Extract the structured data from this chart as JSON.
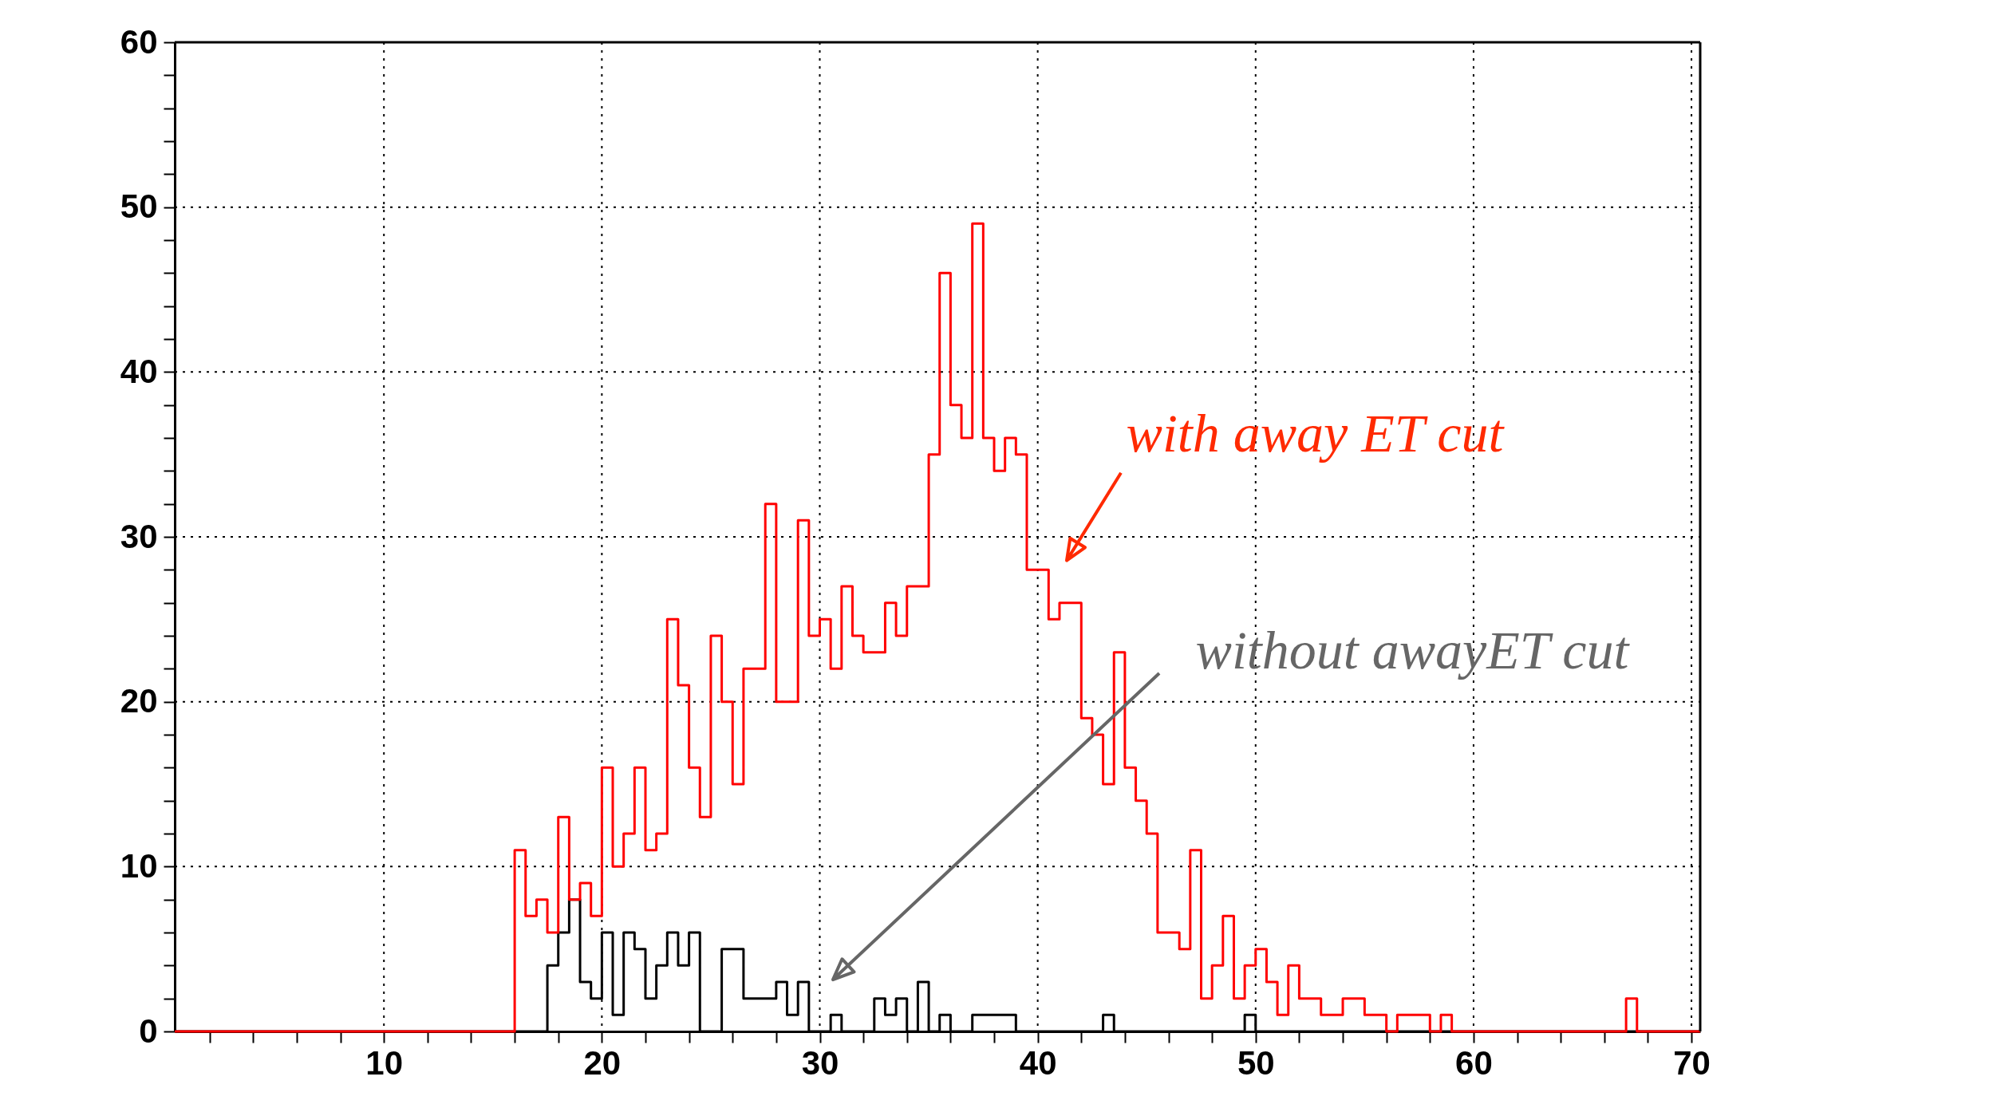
{
  "chart_data": {
    "type": "histogram",
    "bins": [
      0.4,
      16,
      16.5,
      17,
      17.5,
      18,
      18.5,
      19,
      19.5,
      20,
      20.5,
      21,
      21.5,
      22,
      22.5,
      23,
      23.5,
      24,
      24.5,
      25,
      25.5,
      26,
      26.5,
      27,
      27.5,
      28,
      28.5,
      29,
      29.5,
      30,
      30.5,
      31,
      31.5,
      32,
      32.5,
      33,
      33.5,
      34,
      34.5,
      35,
      35.5,
      36,
      36.5,
      37,
      37.5,
      38,
      38.5,
      39,
      39.5,
      40,
      40.5,
      41,
      41.5,
      42,
      42.5,
      43,
      43.5,
      44,
      44.5,
      45,
      45.5,
      46,
      46.5,
      47,
      47.5,
      48,
      48.5,
      49,
      49.5,
      50,
      50.5,
      51,
      51.5,
      52,
      52.5,
      53,
      53.5,
      54,
      54.5,
      55,
      55.5,
      56,
      56.5,
      57,
      57.5,
      58,
      58.5,
      59,
      59.5,
      60,
      60.5,
      61,
      61.5,
      62,
      62.5,
      63,
      63.5,
      64,
      64.5,
      65,
      65.5,
      66,
      66.5,
      67,
      67.5,
      68,
      68.5,
      69,
      69.5,
      70,
      70.4
    ],
    "series": [
      {
        "color": "#000000",
        "values": [
          0,
          0,
          0,
          0,
          4,
          6,
          8,
          3,
          2,
          6,
          1,
          6,
          5,
          2,
          4,
          6,
          4,
          6,
          0,
          0,
          5,
          5,
          2,
          2,
          2,
          3,
          1,
          3,
          0,
          0,
          1,
          0,
          0,
          0,
          2,
          1,
          2,
          0,
          3,
          0,
          1,
          0,
          0,
          1,
          1,
          1,
          1,
          0,
          0,
          0,
          0,
          0,
          0,
          0,
          0,
          1,
          0,
          0,
          0,
          0,
          0,
          0,
          0,
          0,
          0,
          0,
          0,
          0,
          1,
          0,
          0,
          0,
          0,
          0,
          0,
          0,
          0,
          0,
          0,
          0,
          0,
          0,
          0,
          0,
          0,
          0,
          0,
          0,
          0,
          0,
          0,
          0,
          0,
          0,
          0,
          0,
          0,
          0,
          0,
          0,
          0,
          0,
          0,
          0,
          0,
          0,
          0,
          0,
          0,
          0
        ]
      },
      {
        "color": "#ff0000",
        "values": [
          0,
          11,
          7,
          8,
          6,
          13,
          8,
          9,
          7,
          16,
          10,
          12,
          16,
          11,
          12,
          25,
          21,
          16,
          13,
          24,
          20,
          15,
          22,
          22,
          32,
          20,
          20,
          31,
          24,
          25,
          22,
          27,
          24,
          23,
          23,
          26,
          24,
          27,
          27,
          35,
          46,
          38,
          36,
          49,
          36,
          34,
          36,
          35,
          28,
          28,
          25,
          26,
          26,
          19,
          18,
          15,
          23,
          16,
          14,
          12,
          6,
          6,
          5,
          11,
          2,
          4,
          7,
          2,
          4,
          5,
          3,
          1,
          4,
          2,
          2,
          1,
          1,
          2,
          2,
          1,
          1,
          0,
          1,
          1,
          1,
          0,
          1,
          0,
          0,
          0,
          0,
          0,
          0,
          0,
          0,
          0,
          0,
          0,
          0,
          0,
          0,
          0,
          0,
          2,
          0,
          0,
          0,
          0,
          0,
          0
        ]
      }
    ],
    "xlim": [
      0.4,
      70.4
    ],
    "ylim": [
      0,
      60
    ],
    "xticks": [
      {
        "value": 2,
        "label": null
      },
      {
        "value": 4,
        "label": null
      },
      {
        "value": 6,
        "label": null
      },
      {
        "value": 8,
        "label": null
      },
      10,
      {
        "value": 12,
        "label": null
      },
      {
        "value": 14,
        "label": null
      },
      {
        "value": 16,
        "label": null
      },
      {
        "value": 18,
        "label": null
      },
      20,
      {
        "value": 22,
        "label": null
      },
      {
        "value": 24,
        "label": null
      },
      {
        "value": 26,
        "label": null
      },
      {
        "value": 28,
        "label": null
      },
      30,
      {
        "value": 32,
        "label": null
      },
      {
        "value": 34,
        "label": null
      },
      {
        "value": 36,
        "label": null
      },
      {
        "value": 38,
        "label": null
      },
      40,
      {
        "value": 42,
        "label": null
      },
      {
        "value": 44,
        "label": null
      },
      {
        "value": 46,
        "label": null
      },
      {
        "value": 48,
        "label": null
      },
      50,
      {
        "value": 52,
        "label": null
      },
      {
        "value": 54,
        "label": null
      },
      {
        "value": 56,
        "label": null
      },
      {
        "value": 58,
        "label": null
      },
      60,
      {
        "value": 62,
        "label": null
      },
      {
        "value": 64,
        "label": null
      },
      {
        "value": 66,
        "label": null
      },
      {
        "value": 68,
        "label": null
      },
      70
    ],
    "yticks": [
      0,
      {
        "value": 2,
        "label": null
      },
      {
        "value": 4,
        "label": null
      },
      {
        "value": 6,
        "label": null
      },
      {
        "value": 8,
        "label": null
      },
      10,
      {
        "value": 12,
        "label": null
      },
      {
        "value": 14,
        "label": null
      },
      {
        "value": 16,
        "label": null
      },
      {
        "value": 18,
        "label": null
      },
      20,
      {
        "value": 22,
        "label": null
      },
      {
        "value": 24,
        "label": null
      },
      {
        "value": 26,
        "label": null
      },
      {
        "value": 28,
        "label": null
      },
      30,
      {
        "value": 32,
        "label": null
      },
      {
        "value": 34,
        "label": null
      },
      {
        "value": 36,
        "label": null
      },
      {
        "value": 38,
        "label": null
      },
      40,
      {
        "value": 42,
        "label": null
      },
      {
        "value": 44,
        "label": null
      },
      {
        "value": 46,
        "label": null
      },
      {
        "value": 48,
        "label": null
      },
      50,
      {
        "value": 52,
        "label": null
      },
      {
        "value": 54,
        "label": null
      },
      {
        "value": 56,
        "label": null
      },
      {
        "value": 58,
        "label": null
      },
      60
    ],
    "grid": true,
    "annotations": [
      "with away ET cut",
      "without awayET cut"
    ]
  }
}
